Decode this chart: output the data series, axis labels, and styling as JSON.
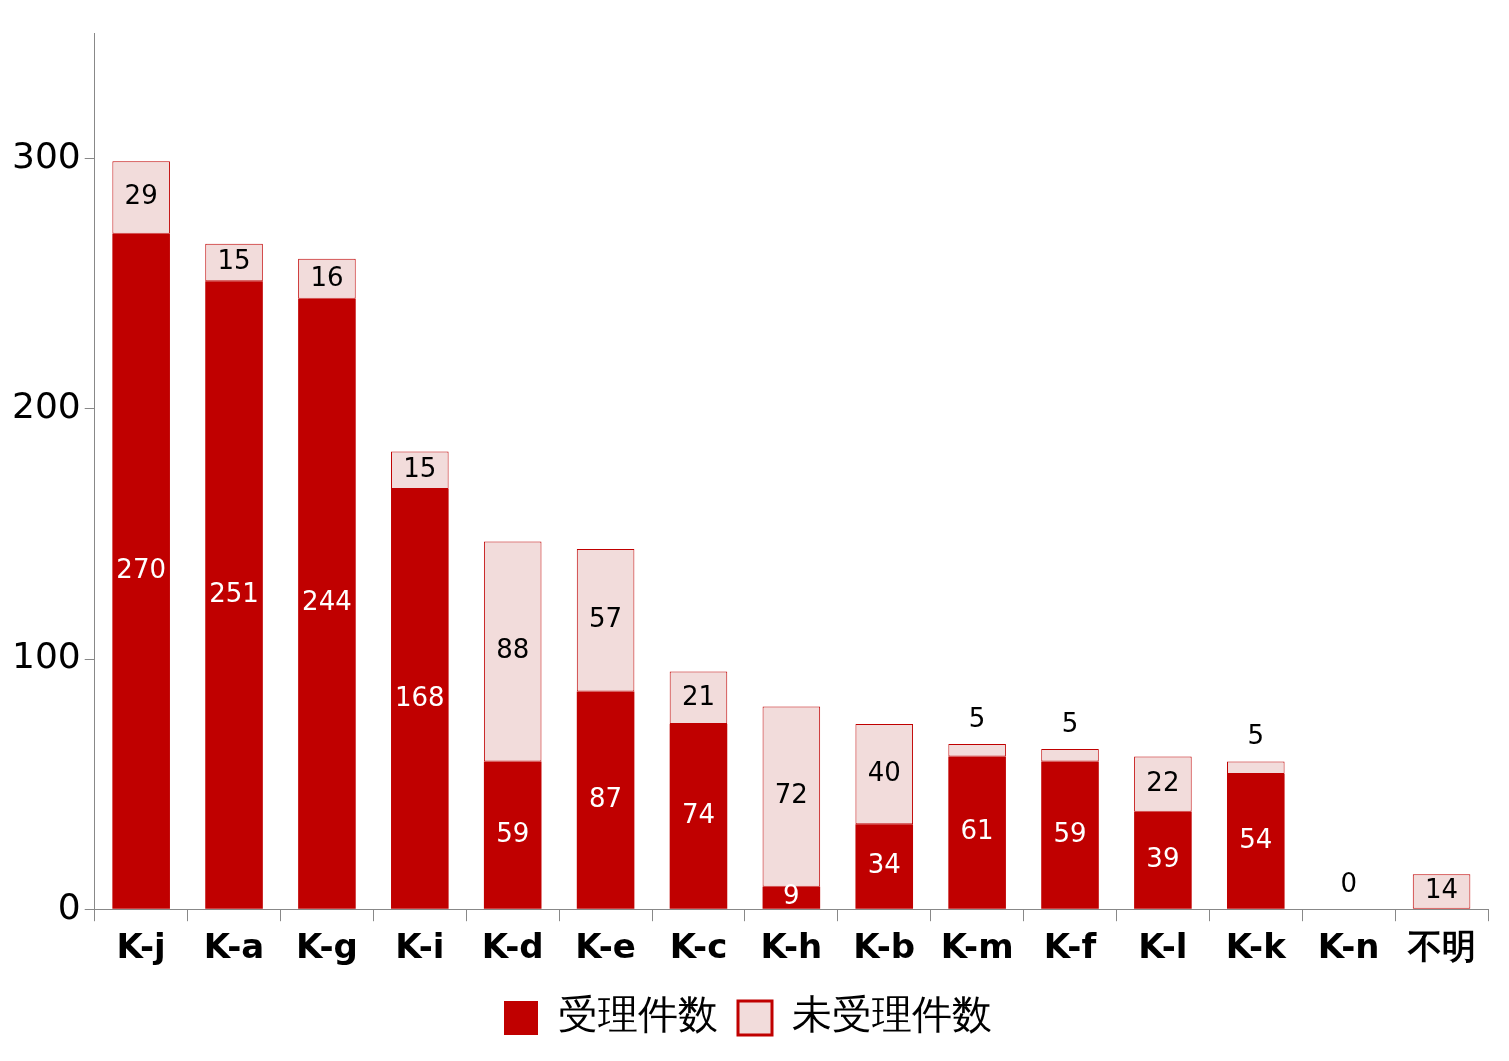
{
  "chart_data": {
    "type": "bar",
    "stacked": true,
    "categories": [
      "K-j",
      "K-a",
      "K-g",
      "K-i",
      "K-d",
      "K-e",
      "K-c",
      "K-h",
      "K-b",
      "K-m",
      "K-f",
      "K-l",
      "K-k",
      "K-n",
      "不明"
    ],
    "series": [
      {
        "name": "受理件数",
        "color": "#c00000",
        "values": [
          270,
          251,
          244,
          168,
          59,
          87,
          74,
          9,
          34,
          61,
          59,
          39,
          54,
          0,
          0
        ],
        "value_labels": [
          "270",
          "251",
          "244",
          "168",
          "59",
          "87",
          "74",
          "9",
          "34",
          "61",
          "59",
          "39",
          "54",
          null,
          null
        ]
      },
      {
        "name": "未受理件数",
        "color": "#f2dcdb",
        "values": [
          29,
          15,
          16,
          15,
          88,
          57,
          21,
          72,
          40,
          5,
          5,
          22,
          5,
          0,
          14
        ],
        "value_labels": [
          "29",
          "15",
          "16",
          "15",
          "88",
          "57",
          "21",
          "72",
          "40",
          "5",
          "5",
          "22",
          "5",
          "0",
          "14"
        ]
      }
    ],
    "ylim": [
      0,
      350
    ],
    "yticks": [
      0,
      100,
      200,
      300
    ],
    "grid": false,
    "legend": "bottom"
  }
}
